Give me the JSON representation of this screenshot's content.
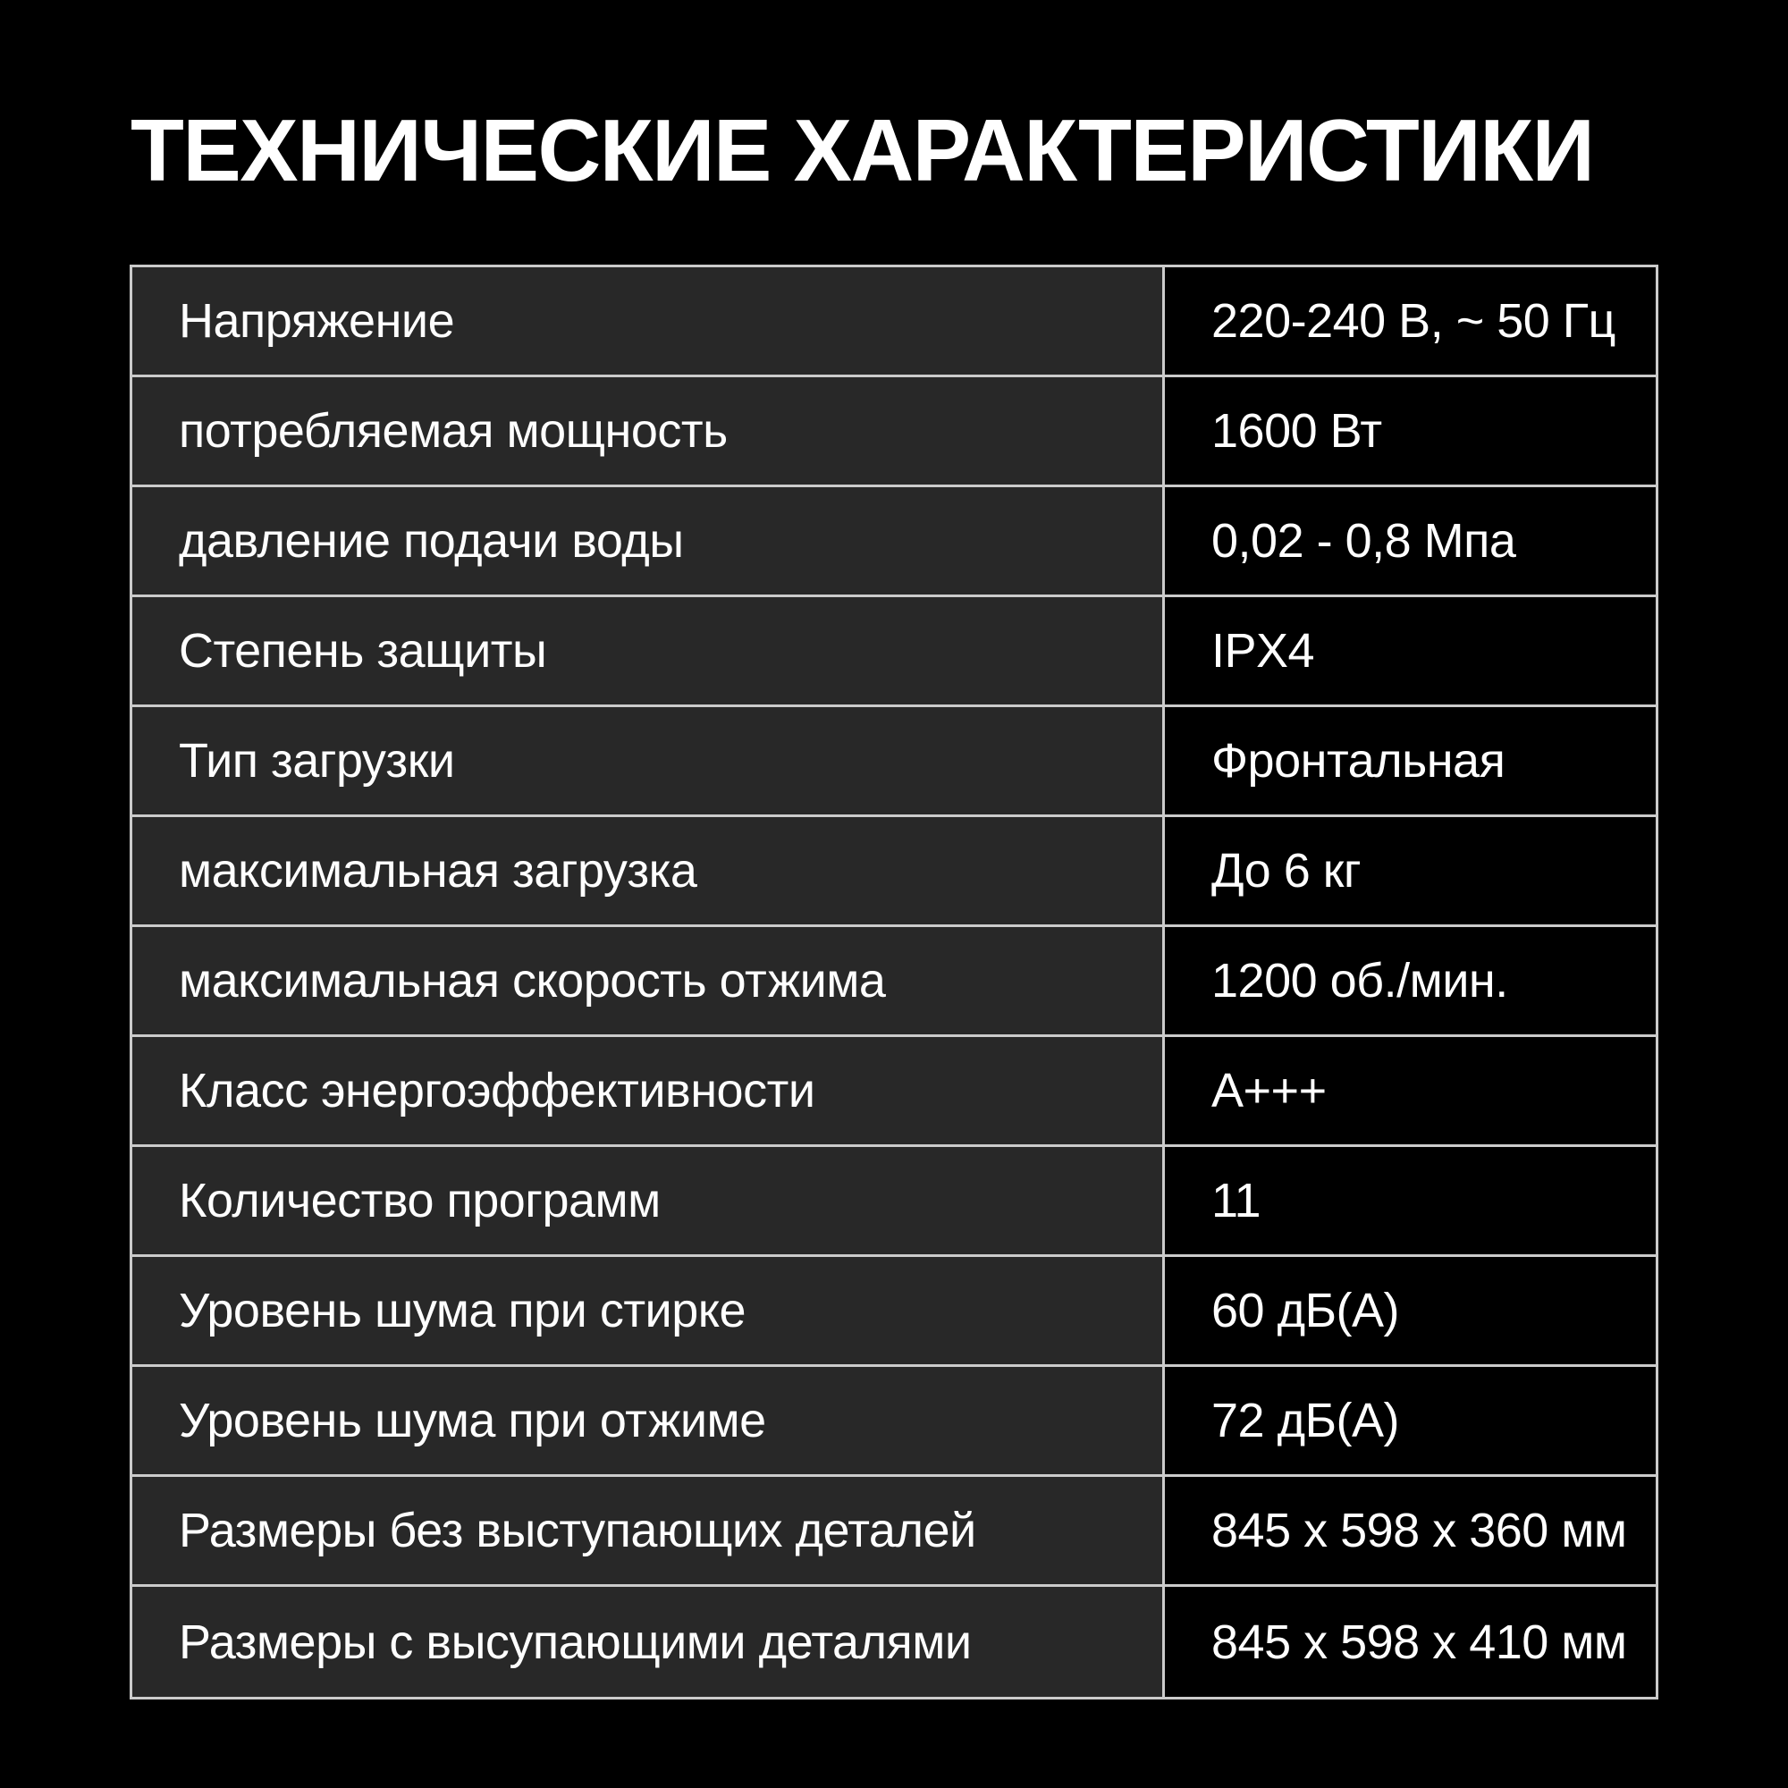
{
  "page": {
    "title": "ТЕХНИЧЕСКИЕ ХАРАКТЕРИСТИКИ",
    "colors": {
      "background": "#000000",
      "text": "#ffffff",
      "border": "#cbcbcb",
      "label_cell_background": "#282828",
      "value_cell_background": "#000000"
    }
  },
  "table": {
    "rows": [
      {
        "label": "Напряжение",
        "value": "220-240 В, ~ 50 Гц"
      },
      {
        "label": "потребляемая мощность",
        "value": "1600 Вт"
      },
      {
        "label": "давление подачи воды",
        "value": "0,02 - 0,8 Мпа"
      },
      {
        "label": "Степень защиты",
        "value": "IPX4"
      },
      {
        "label": "Тип загрузки",
        "value": "Фронтальная"
      },
      {
        "label": "максимальная загрузка",
        "value": "До 6 кг"
      },
      {
        "label": "максимальная скорость отжима",
        "value": "1200 об./мин."
      },
      {
        "label": "Класс энергоэффективности",
        "value": "A+++"
      },
      {
        "label": "Количество программ",
        "value": "11"
      },
      {
        "label": "Уровень шума при стирке",
        "value": "60 дБ(А)"
      },
      {
        "label": "Уровень шума при отжиме",
        "value": "72 дБ(А)"
      },
      {
        "label": "Размеры без выступающих деталей",
        "value": "845 x 598 x 360 мм"
      },
      {
        "label": "Размеры с высупающими деталями",
        "value": "845 x 598 x 410 мм"
      }
    ]
  }
}
